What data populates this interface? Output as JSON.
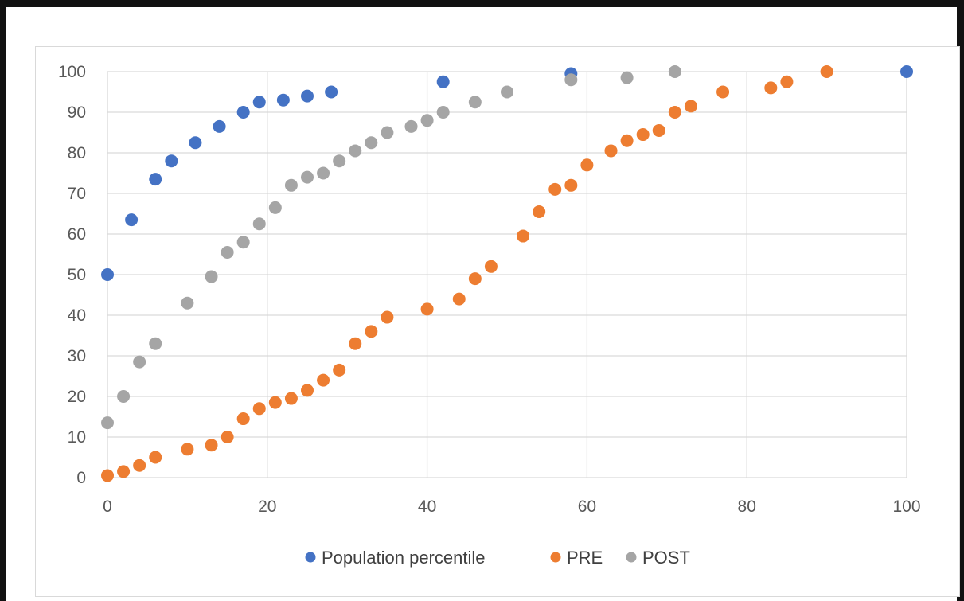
{
  "chart_data": {
    "type": "scatter",
    "title": "",
    "xlabel": "",
    "ylabel": "",
    "xlim": [
      0,
      100
    ],
    "ylim": [
      0,
      100
    ],
    "x_ticks": [
      "0",
      "20",
      "40",
      "60",
      "80",
      "100"
    ],
    "y_ticks": [
      "0",
      "10",
      "20",
      "30",
      "40",
      "50",
      "60",
      "70",
      "80",
      "90",
      "100"
    ],
    "grid": true,
    "legend_position": "bottom",
    "series": [
      {
        "name": "Population percentile",
        "color": "#4472C4",
        "points": [
          [
            0,
            50
          ],
          [
            3,
            63.5
          ],
          [
            6,
            73.5
          ],
          [
            8,
            78
          ],
          [
            11,
            82.5
          ],
          [
            14,
            86.5
          ],
          [
            17,
            90
          ],
          [
            19,
            92.5
          ],
          [
            22,
            93
          ],
          [
            25,
            94
          ],
          [
            28,
            95
          ],
          [
            42,
            97.5
          ],
          [
            58,
            99.5
          ],
          [
            100,
            100
          ]
        ]
      },
      {
        "name": "PRE",
        "color": "#ED7D31",
        "points": [
          [
            0,
            0.5
          ],
          [
            2,
            1.5
          ],
          [
            4,
            3
          ],
          [
            6,
            5
          ],
          [
            10,
            7
          ],
          [
            13,
            8
          ],
          [
            15,
            10
          ],
          [
            17,
            14.5
          ],
          [
            19,
            17
          ],
          [
            21,
            18.5
          ],
          [
            23,
            19.5
          ],
          [
            25,
            21.5
          ],
          [
            27,
            24
          ],
          [
            29,
            26.5
          ],
          [
            31,
            33
          ],
          [
            33,
            36
          ],
          [
            35,
            39.5
          ],
          [
            40,
            41.5
          ],
          [
            44,
            44
          ],
          [
            46,
            49
          ],
          [
            48,
            52
          ],
          [
            52,
            59.5
          ],
          [
            54,
            65.5
          ],
          [
            56,
            71
          ],
          [
            58,
            72
          ],
          [
            60,
            77
          ],
          [
            63,
            80.5
          ],
          [
            65,
            83
          ],
          [
            67,
            84.5
          ],
          [
            69,
            85.5
          ],
          [
            71,
            90
          ],
          [
            73,
            91.5
          ],
          [
            77,
            95
          ],
          [
            83,
            96
          ],
          [
            85,
            97.5
          ],
          [
            90,
            100
          ]
        ]
      },
      {
        "name": "POST",
        "color": "#A5A5A5",
        "points": [
          [
            0,
            13.5
          ],
          [
            2,
            20
          ],
          [
            4,
            28.5
          ],
          [
            6,
            33
          ],
          [
            10,
            43
          ],
          [
            13,
            49.5
          ],
          [
            15,
            55.5
          ],
          [
            17,
            58
          ],
          [
            19,
            62.5
          ],
          [
            21,
            66.5
          ],
          [
            23,
            72
          ],
          [
            25,
            74
          ],
          [
            27,
            75
          ],
          [
            29,
            78
          ],
          [
            31,
            80.5
          ],
          [
            33,
            82.5
          ],
          [
            35,
            85
          ],
          [
            38,
            86.5
          ],
          [
            40,
            88
          ],
          [
            42,
            90
          ],
          [
            46,
            92.5
          ],
          [
            50,
            95
          ],
          [
            58,
            98
          ],
          [
            65,
            98.5
          ],
          [
            71,
            100
          ]
        ]
      }
    ]
  }
}
